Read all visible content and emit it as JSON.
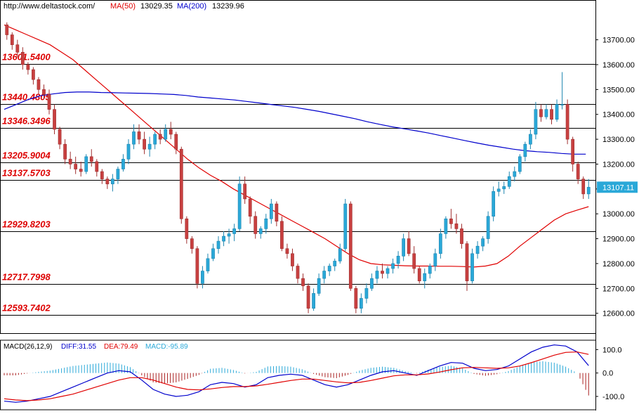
{
  "header": {
    "url": "http://www.deltastock.com/",
    "ma50_label": "MA(50)",
    "ma50_value": "13029.35",
    "ma200_label": "MA(200)",
    "ma200_value": "13239.96",
    "ma50_color": "#e00000",
    "ma200_color": "#0000cc"
  },
  "levels": [
    {
      "label": "13601.5400",
      "value": 13601.54
    },
    {
      "label": "13440.4805",
      "value": 13440.48
    },
    {
      "label": "13346.3496",
      "value": 13346.35
    },
    {
      "label": "13205.9004",
      "value": 13205.9
    },
    {
      "label": "13137.5703",
      "value": 13137.57
    },
    {
      "label": "12929.8203",
      "value": 12929.82
    },
    {
      "label": "12717.7998",
      "value": 12717.8
    },
    {
      "label": "12593.7402",
      "value": 12593.74
    }
  ],
  "price_axis": {
    "ticks": [
      "12600.00",
      "12700.00",
      "12800.00",
      "12900.00",
      "13000.00",
      "13100.00",
      "13200.00",
      "13300.00",
      "13400.00",
      "13500.00",
      "13600.00",
      "13700.00"
    ],
    "tick_values": [
      12600,
      12700,
      12800,
      12900,
      13000,
      13100,
      13200,
      13300,
      13400,
      13500,
      13600,
      13700
    ],
    "ylim": [
      12520,
      13860
    ],
    "current_price_label": "13107.11",
    "current_price": 13107.11
  },
  "macd": {
    "label": "MACD(26,12,9)",
    "diff_label": "DIFF:31.55",
    "dea_label": "DEA:79.49",
    "macd_label": "MACD:-95.89",
    "ticks": [
      "100.0",
      "0.0",
      "-100.0"
    ],
    "tick_values": [
      100,
      0,
      -100
    ],
    "ylim": [
      -160,
      140
    ]
  },
  "colors": {
    "up": "#2aa8d8",
    "down": "#c84040",
    "level_line": "#000000",
    "level_text": "#dd0000",
    "hist_up": "#2aa8d8",
    "hist_down": "#aa2222"
  },
  "chart_data": {
    "type": "candlestick",
    "series": [
      {
        "name": "MA(50)",
        "values": [
          13760,
          13740,
          13720,
          13700,
          13680,
          13650,
          13620,
          13580,
          13540,
          13500,
          13460,
          13420,
          13380,
          13340,
          13300,
          13260,
          13220,
          13185,
          13155,
          13130,
          13100,
          13075,
          13050,
          13025,
          13000,
          12975,
          12950,
          12925,
          12900,
          12870,
          12840,
          12815,
          12800,
          12795,
          12793,
          12791,
          12790,
          12790,
          12789,
          12789,
          12788,
          12786,
          12790,
          12800,
          12830,
          12870,
          12905,
          12940,
          12975,
          13000,
          13015,
          13029
        ]
      },
      {
        "name": "MA(200)",
        "values": [
          13420,
          13440,
          13460,
          13475,
          13482,
          13488,
          13490,
          13490,
          13488,
          13487,
          13486,
          13485,
          13484,
          13482,
          13480,
          13476,
          13470,
          13466,
          13462,
          13458,
          13452,
          13446,
          13440,
          13434,
          13428,
          13420,
          13412,
          13402,
          13392,
          13382,
          13370,
          13360,
          13350,
          13342,
          13334,
          13325,
          13315,
          13305,
          13295,
          13285,
          13276,
          13268,
          13260,
          13254,
          13250,
          13247,
          13243,
          13240,
          13240
        ]
      }
    ],
    "candles": [
      [
        13760,
        13770,
        13700,
        13720
      ],
      [
        13720,
        13730,
        13660,
        13680
      ],
      [
        13680,
        13700,
        13630,
        13650
      ],
      [
        13650,
        13670,
        13580,
        13600
      ],
      [
        13600,
        13610,
        13560,
        13580
      ],
      [
        13580,
        13590,
        13520,
        13540
      ],
      [
        13540,
        13550,
        13480,
        13500
      ],
      [
        13500,
        13520,
        13460,
        13480
      ],
      [
        13480,
        13500,
        13400,
        13420
      ],
      [
        13420,
        13440,
        13320,
        13340
      ],
      [
        13340,
        13350,
        13260,
        13280
      ],
      [
        13280,
        13300,
        13200,
        13220
      ],
      [
        13220,
        13250,
        13180,
        13200
      ],
      [
        13200,
        13230,
        13160,
        13180
      ],
      [
        13180,
        13210,
        13150,
        13170
      ],
      [
        13170,
        13240,
        13160,
        13230
      ],
      [
        13230,
        13260,
        13190,
        13210
      ],
      [
        13210,
        13220,
        13150,
        13170
      ],
      [
        13170,
        13180,
        13120,
        13140
      ],
      [
        13140,
        13150,
        13100,
        13120
      ],
      [
        13120,
        13160,
        13090,
        13140
      ],
      [
        13140,
        13190,
        13120,
        13180
      ],
      [
        13180,
        13240,
        13170,
        13220
      ],
      [
        13220,
        13300,
        13200,
        13280
      ],
      [
        13280,
        13360,
        13260,
        13330
      ],
      [
        13330,
        13360,
        13280,
        13300
      ],
      [
        13300,
        13330,
        13240,
        13260
      ],
      [
        13260,
        13310,
        13230,
        13280
      ],
      [
        13280,
        13330,
        13260,
        13320
      ],
      [
        13320,
        13340,
        13280,
        13300
      ],
      [
        13300,
        13360,
        13290,
        13340
      ],
      [
        13340,
        13370,
        13300,
        13320
      ],
      [
        13320,
        13330,
        13240,
        13260
      ],
      [
        13260,
        13270,
        12960,
        12980
      ],
      [
        12980,
        12990,
        12880,
        12900
      ],
      [
        12900,
        12910,
        12840,
        12860
      ],
      [
        12860,
        12870,
        12700,
        12720
      ],
      [
        12720,
        12790,
        12700,
        12770
      ],
      [
        12770,
        12840,
        12760,
        12820
      ],
      [
        12820,
        12880,
        12810,
        12860
      ],
      [
        12860,
        12910,
        12840,
        12890
      ],
      [
        12890,
        12930,
        12870,
        12910
      ],
      [
        12910,
        12940,
        12880,
        12920
      ],
      [
        12920,
        12960,
        12890,
        12940
      ],
      [
        12940,
        13150,
        12930,
        13120
      ],
      [
        13120,
        13150,
        13040,
        13060
      ],
      [
        13060,
        13070,
        12960,
        12990
      ],
      [
        12990,
        13010,
        12900,
        12920
      ],
      [
        12920,
        12950,
        12900,
        12940
      ],
      [
        12940,
        13000,
        12920,
        12980
      ],
      [
        12980,
        13060,
        12960,
        13040
      ],
      [
        13040,
        13050,
        12950,
        12970
      ],
      [
        12970,
        12990,
        12850,
        12860
      ],
      [
        12860,
        12880,
        12820,
        12840
      ],
      [
        12840,
        12860,
        12770,
        12790
      ],
      [
        12790,
        12800,
        12720,
        12740
      ],
      [
        12740,
        12760,
        12690,
        12710
      ],
      [
        12710,
        12720,
        12600,
        12620
      ],
      [
        12620,
        12700,
        12610,
        12680
      ],
      [
        12680,
        12760,
        12670,
        12740
      ],
      [
        12740,
        12790,
        12720,
        12770
      ],
      [
        12770,
        12800,
        12750,
        12790
      ],
      [
        12790,
        12820,
        12770,
        12810
      ],
      [
        12810,
        12880,
        12800,
        12860
      ],
      [
        12860,
        13060,
        12850,
        13040
      ],
      [
        13040,
        13050,
        12690,
        12700
      ],
      [
        12700,
        12710,
        12600,
        12620
      ],
      [
        12620,
        12680,
        12600,
        12660
      ],
      [
        12660,
        12720,
        12640,
        12700
      ],
      [
        12700,
        12760,
        12690,
        12740
      ],
      [
        12740,
        12790,
        12720,
        12770
      ],
      [
        12770,
        12800,
        12740,
        12760
      ],
      [
        12760,
        12790,
        12740,
        12780
      ],
      [
        12780,
        12820,
        12760,
        12800
      ],
      [
        12800,
        12850,
        12780,
        12830
      ],
      [
        12830,
        12920,
        12810,
        12900
      ],
      [
        12900,
        12930,
        12830,
        12840
      ],
      [
        12840,
        12870,
        12760,
        12780
      ],
      [
        12780,
        12790,
        12720,
        12730
      ],
      [
        12730,
        12780,
        12700,
        12760
      ],
      [
        12760,
        12800,
        12740,
        12790
      ],
      [
        12790,
        12860,
        12770,
        12840
      ],
      [
        12840,
        12940,
        12820,
        12920
      ],
      [
        12920,
        12990,
        12900,
        12980
      ],
      [
        12980,
        13020,
        12940,
        12960
      ],
      [
        12960,
        13000,
        12920,
        12940
      ],
      [
        12940,
        12960,
        12860,
        12880
      ],
      [
        12880,
        12890,
        12690,
        12730
      ],
      [
        12730,
        12860,
        12720,
        12840
      ],
      [
        12840,
        12890,
        12820,
        12870
      ],
      [
        12870,
        12910,
        12850,
        12900
      ],
      [
        12900,
        13010,
        12880,
        12990
      ],
      [
        12990,
        13110,
        12970,
        13090
      ],
      [
        13090,
        13130,
        13070,
        13100
      ],
      [
        13100,
        13130,
        13080,
        13110
      ],
      [
        13110,
        13170,
        13100,
        13150
      ],
      [
        13150,
        13190,
        13130,
        13170
      ],
      [
        13170,
        13240,
        13160,
        13230
      ],
      [
        13230,
        13290,
        13210,
        13280
      ],
      [
        13280,
        13340,
        13260,
        13320
      ],
      [
        13320,
        13450,
        13300,
        13420
      ],
      [
        13420,
        13440,
        13370,
        13390
      ],
      [
        13390,
        13440,
        13380,
        13420
      ],
      [
        13420,
        13440,
        13360,
        13380
      ],
      [
        13380,
        13460,
        13370,
        13440
      ],
      [
        13440,
        13570,
        13420,
        13440
      ],
      [
        13440,
        13460,
        13280,
        13300
      ],
      [
        13300,
        13310,
        13170,
        13200
      ],
      [
        13200,
        13210,
        13120,
        13140
      ],
      [
        13140,
        13150,
        13060,
        13080
      ],
      [
        13080,
        13140,
        13060,
        13107
      ]
    ],
    "macd_diff": [
      -120,
      -125,
      -120,
      -110,
      -100,
      -80,
      -60,
      -40,
      -20,
      0,
      10,
      5,
      -30,
      -70,
      -90,
      -100,
      -95,
      -80,
      -50,
      -40,
      -45,
      -60,
      -50,
      -20,
      -10,
      -5,
      -10,
      -30,
      -50,
      -60,
      -50,
      -30,
      -10,
      5,
      10,
      0,
      -10,
      10,
      30,
      45,
      42,
      20,
      10,
      15,
      30,
      60,
      90,
      110,
      120,
      115,
      90,
      31.55
    ],
    "macd_dea": [
      -110,
      -115,
      -118,
      -115,
      -110,
      -100,
      -90,
      -75,
      -60,
      -45,
      -30,
      -20,
      -20,
      -30,
      -45,
      -60,
      -70,
      -72,
      -68,
      -62,
      -58,
      -58,
      -55,
      -48,
      -40,
      -32,
      -26,
      -26,
      -32,
      -38,
      -42,
      -40,
      -32,
      -22,
      -12,
      -8,
      -8,
      -4,
      4,
      14,
      22,
      24,
      22,
      20,
      22,
      30,
      44,
      60,
      76,
      88,
      90,
      79.49
    ],
    "macd_hist": [
      -10,
      -10,
      -2,
      5,
      10,
      20,
      30,
      35,
      40,
      45,
      40,
      25,
      -10,
      -40,
      -45,
      -40,
      -25,
      -8,
      18,
      22,
      13,
      -2,
      5,
      28,
      30,
      27,
      16,
      -4,
      -18,
      -22,
      -8,
      10,
      22,
      27,
      22,
      8,
      -2,
      14,
      26,
      31,
      20,
      -4,
      -12,
      -5,
      8,
      30,
      46,
      50,
      44,
      27,
      0,
      -95.89
    ],
    "title": "",
    "xlabel": "",
    "ylabel": ""
  }
}
